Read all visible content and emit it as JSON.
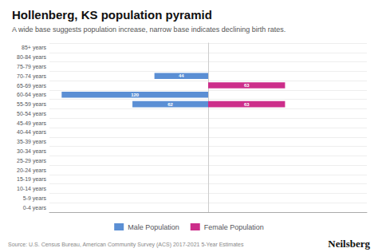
{
  "chart_data": {
    "type": "bar",
    "orientation": "horizontal",
    "title": "Hollenberg, KS population pyramid",
    "subtitle": "A wide base suggests population increase, narrow base indicates declining birth rates.",
    "categories": [
      "85+ years",
      "80-84 years",
      "75-79 years",
      "70-74 years",
      "65-69 years",
      "60-64 years",
      "55-59 years",
      "50-54 years",
      "45-49 years",
      "40-44 years",
      "35-39 years",
      "30-34 years",
      "25-29 years",
      "20-24 years",
      "15-19 years",
      "10-14 years",
      "5-9 years",
      "0-4 years"
    ],
    "series": [
      {
        "name": "Male Population",
        "color": "#5b8fd4",
        "values": [
          0,
          0,
          0,
          44,
          0,
          120,
          62,
          0,
          0,
          0,
          0,
          0,
          0,
          0,
          0,
          0,
          0,
          0
        ],
        "value_labels": [
          null,
          null,
          null,
          "44",
          null,
          "120",
          "62",
          null,
          null,
          null,
          null,
          null,
          null,
          null,
          null,
          null,
          null,
          null
        ]
      },
      {
        "name": "Female Population",
        "color": "#cc2e8a",
        "values": [
          0,
          0,
          0,
          0,
          63,
          0,
          63,
          0,
          0,
          0,
          0,
          0,
          0,
          0,
          0,
          0,
          0,
          0
        ],
        "value_labels": [
          null,
          null,
          null,
          null,
          "63",
          null,
          "63",
          null,
          null,
          null,
          null,
          null,
          null,
          null,
          null,
          null,
          null,
          null
        ]
      }
    ],
    "xlim": [
      0,
      130
    ],
    "grid": true,
    "legend": "bottom",
    "data_labels": true,
    "tick_labels": "y",
    "annotations": [
      "Source: U.S. Census Bureau, American Community Survey (ACS) 2017-2021 5-Year Estimates",
      "Neilsberg"
    ]
  }
}
